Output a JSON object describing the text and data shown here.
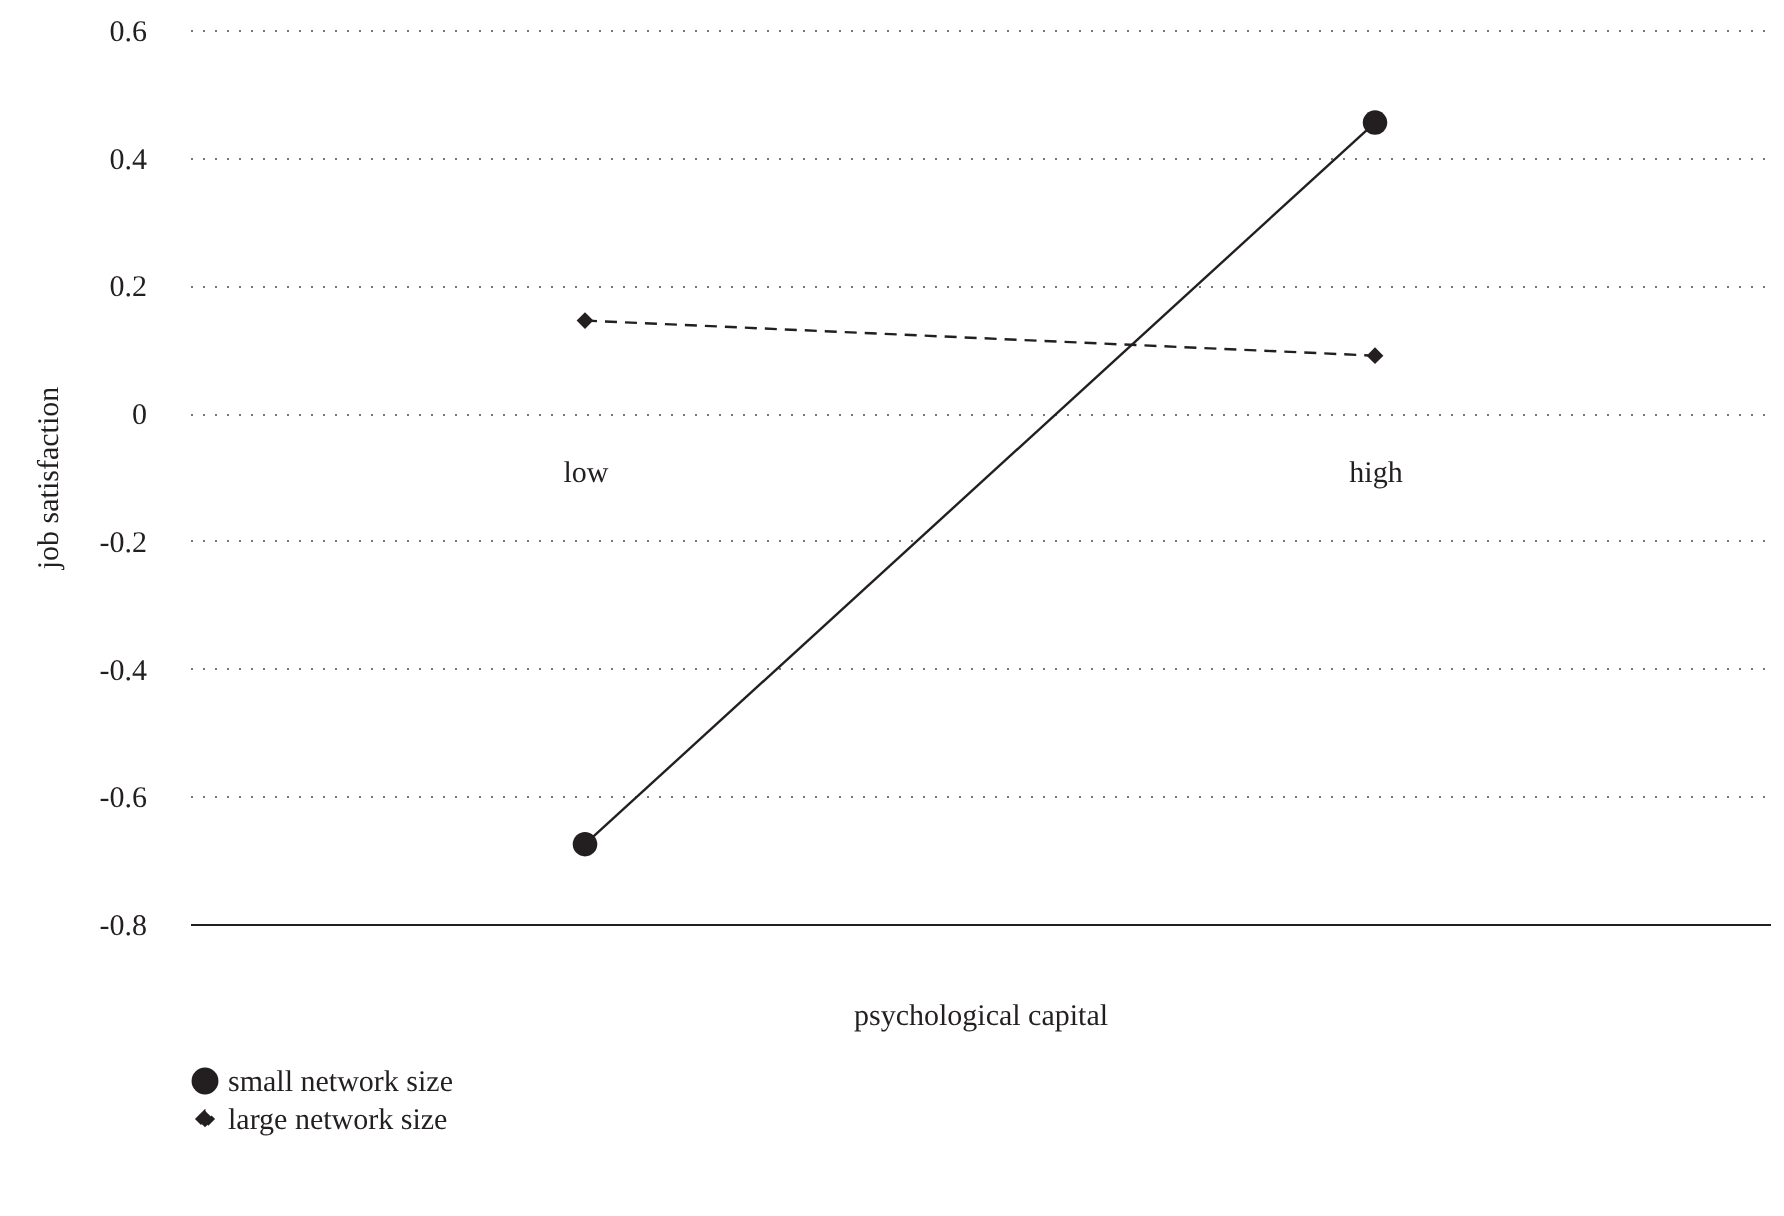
{
  "chart_data": {
    "type": "line",
    "xlabel": "psychological capital",
    "ylabel": "job satisfaction",
    "categories": [
      "low",
      "high"
    ],
    "series": [
      {
        "name": "small network size",
        "color": "#231f20",
        "values": [
          -0.675,
          0.455
        ],
        "marker": "circle",
        "line_style": "solid"
      },
      {
        "name": "large network size",
        "color": "#231f20",
        "values": [
          0.145,
          0.09
        ],
        "marker": "diamond",
        "line_style": "dashed"
      }
    ],
    "ylim": [
      -0.8,
      0.6
    ],
    "yticks": [
      -0.8,
      -0.6,
      -0.4,
      -0.2,
      0,
      0.2,
      0.4,
      0.6
    ],
    "grid": "y",
    "legend": "bottom left"
  }
}
